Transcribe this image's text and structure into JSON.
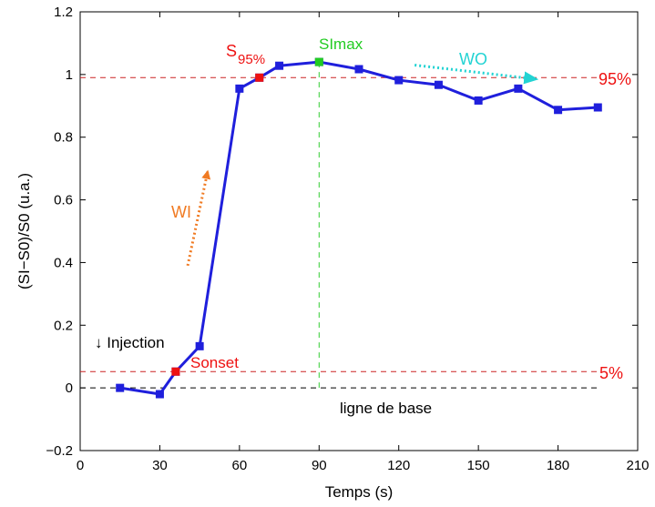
{
  "chart_data": {
    "type": "line",
    "xlabel": "Temps (s)",
    "ylabel": "(SI−S0)/S0 (u.a.)",
    "xlim": [
      0,
      210
    ],
    "ylim": [
      -0.2,
      1.2
    ],
    "xticks": [
      0,
      30,
      60,
      90,
      120,
      150,
      180,
      210
    ],
    "yticks": [
      -0.2,
      0,
      0.2,
      0.4,
      0.6,
      0.8,
      1,
      1.2
    ],
    "ytick_labels": [
      "−0.2",
      "0",
      "0.2",
      "0.4",
      "0.6",
      "0.8",
      "1",
      "1.2"
    ],
    "grid": false,
    "series": [
      {
        "color": "#1f1fdc",
        "marker": "square",
        "x": [
          15,
          30,
          36,
          45,
          60,
          67.5,
          75,
          90,
          105,
          120,
          135,
          150,
          165,
          180,
          195
        ],
        "y": [
          0.0,
          -0.02,
          0.052,
          0.133,
          0.955,
          0.99,
          1.028,
          1.04,
          1.017,
          0.982,
          0.967,
          0.917,
          0.955,
          0.887,
          0.895
        ]
      }
    ],
    "highlight_points": [
      {
        "x": 36,
        "y": 0.052,
        "color": "#ee1111"
      },
      {
        "x": 67.5,
        "y": 0.99,
        "color": "#ee1111"
      },
      {
        "x": 90,
        "y": 1.04,
        "color": "#22cc22"
      }
    ],
    "reference_lines": [
      {
        "orientation": "horizontal",
        "y": 0.99,
        "color": "#cc2222",
        "style": "dashed"
      },
      {
        "orientation": "horizontal",
        "y": 0.052,
        "color": "#cc2222",
        "style": "dashed"
      },
      {
        "orientation": "horizontal",
        "y": 0.0,
        "color": "#000000",
        "style": "dashed"
      },
      {
        "orientation": "vertical",
        "x": 90,
        "color": "#33cc33",
        "style": "dashed"
      }
    ],
    "annotations": {
      "s95_main": "S",
      "s95_sub": "95%",
      "simax": "SImax",
      "wo": "WO",
      "wi": "WI",
      "pct95": "95%",
      "pct5": "5%",
      "sonset": "Sonset",
      "injection": "↓ Injection",
      "baseline": "ligne de base"
    },
    "annotation_colors": {
      "red": "#ee1111",
      "green": "#22cc22",
      "cyan": "#22d3d3",
      "orange": "#f07a22",
      "black": "#000000"
    },
    "arrows": [
      {
        "name": "wi-arrow",
        "from": [
          40.5,
          0.39
        ],
        "to": [
          48,
          0.69
        ],
        "color": "#f07a22",
        "style": "dotted"
      },
      {
        "name": "wo-arrow",
        "from": [
          126,
          1.03
        ],
        "to": [
          172,
          0.985
        ],
        "color": "#22d3d3",
        "style": "dotted"
      }
    ]
  }
}
